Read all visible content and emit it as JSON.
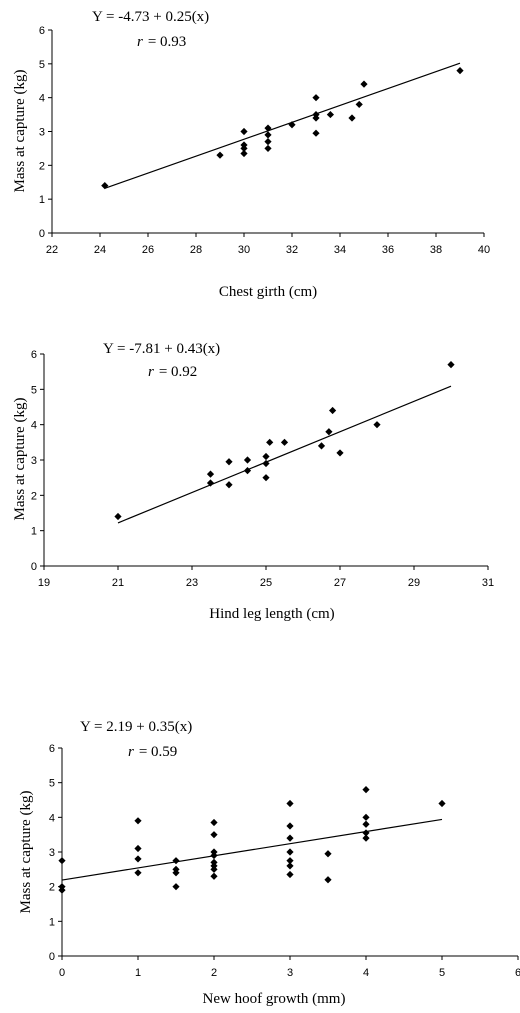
{
  "chart_data": [
    {
      "type": "scatter",
      "title": "",
      "equation": "Y = -4.73 + 0.25(x)",
      "r_symbol": "r",
      "r_value": "= 0.93",
      "xlabel": "Chest girth (cm)",
      "ylabel": "Mass at capture (kg)",
      "xlim": [
        22,
        40
      ],
      "ylim": [
        0,
        6
      ],
      "xticks": [
        22,
        24,
        26,
        28,
        30,
        32,
        34,
        36,
        38,
        40
      ],
      "yticks": [
        0,
        1,
        2,
        3,
        4,
        5,
        6
      ],
      "points": [
        [
          24.2,
          1.4
        ],
        [
          29,
          2.3
        ],
        [
          30,
          3.0
        ],
        [
          30,
          2.6
        ],
        [
          30,
          2.5
        ],
        [
          30,
          2.35
        ],
        [
          31,
          3.1
        ],
        [
          31,
          2.9
        ],
        [
          31,
          2.7
        ],
        [
          31,
          2.5
        ],
        [
          32,
          3.2
        ],
        [
          33,
          4.0
        ],
        [
          33,
          3.5
        ],
        [
          33,
          3.4
        ],
        [
          33,
          2.95
        ],
        [
          33.6,
          3.5
        ],
        [
          34.5,
          3.4
        ],
        [
          34.8,
          3.8
        ],
        [
          35,
          4.4
        ],
        [
          39,
          4.8
        ]
      ],
      "fit": {
        "intercept": -4.73,
        "slope": 0.25,
        "x_range": [
          24.2,
          39
        ]
      },
      "grid": false,
      "legend": "none"
    },
    {
      "type": "scatter",
      "title": "",
      "equation": "Y = -7.81 + 0.43(x)",
      "r_symbol": "r",
      "r_value": "= 0.92",
      "xlabel": "Hind leg length (cm)",
      "ylabel": "Mass at capture (kg)",
      "xlim": [
        19,
        31
      ],
      "ylim": [
        0,
        6
      ],
      "xticks": [
        19,
        21,
        23,
        25,
        27,
        29,
        31
      ],
      "yticks": [
        0,
        1,
        2,
        3,
        4,
        5,
        6
      ],
      "points": [
        [
          21,
          1.4
        ],
        [
          23.5,
          2.6
        ],
        [
          23.5,
          2.35
        ],
        [
          24,
          2.95
        ],
        [
          24,
          2.3
        ],
        [
          24.5,
          3.0
        ],
        [
          24.5,
          2.7
        ],
        [
          25,
          3.1
        ],
        [
          25,
          2.9
        ],
        [
          25,
          2.5
        ],
        [
          25.1,
          3.5
        ],
        [
          25.5,
          3.5
        ],
        [
          26.5,
          3.4
        ],
        [
          26.7,
          3.8
        ],
        [
          26.8,
          4.4
        ],
        [
          27,
          3.2
        ],
        [
          28,
          4.0
        ],
        [
          30,
          5.7
        ]
      ],
      "fit": {
        "intercept": -7.81,
        "slope": 0.43,
        "x_range": [
          21,
          30
        ]
      },
      "grid": false,
      "legend": "none"
    },
    {
      "type": "scatter",
      "title": "",
      "equation": "Y = 2.19 + 0.35(x)",
      "r_symbol": "r",
      "r_value": "= 0.59",
      "xlabel": "New hoof growth (mm)",
      "ylabel": "Mass at capture (kg)",
      "xlim": [
        0,
        6
      ],
      "ylim": [
        0,
        6
      ],
      "xticks": [
        0,
        1,
        2,
        3,
        4,
        5,
        6
      ],
      "yticks": [
        0,
        1,
        2,
        3,
        4,
        5,
        6
      ],
      "points": [
        [
          0,
          2.75
        ],
        [
          0,
          2.0
        ],
        [
          0,
          1.9
        ],
        [
          1,
          3.9
        ],
        [
          1,
          3.1
        ],
        [
          1,
          2.8
        ],
        [
          1,
          2.4
        ],
        [
          1.5,
          2.75
        ],
        [
          1.5,
          2.5
        ],
        [
          1.5,
          2.4
        ],
        [
          1.5,
          2.0
        ],
        [
          2,
          3.85
        ],
        [
          2,
          3.5
        ],
        [
          2,
          3.0
        ],
        [
          2,
          2.9
        ],
        [
          2,
          2.7
        ],
        [
          2,
          2.6
        ],
        [
          2,
          2.5
        ],
        [
          2,
          2.3
        ],
        [
          3,
          4.4
        ],
        [
          3,
          3.75
        ],
        [
          3,
          3.4
        ],
        [
          3,
          3.0
        ],
        [
          3,
          2.75
        ],
        [
          3,
          2.6
        ],
        [
          3,
          2.35
        ],
        [
          3.5,
          2.95
        ],
        [
          3.5,
          2.2
        ],
        [
          4,
          4.8
        ],
        [
          4,
          4.0
        ],
        [
          4,
          3.8
        ],
        [
          4,
          3.55
        ],
        [
          4,
          3.4
        ],
        [
          5,
          4.4
        ]
      ],
      "fit": {
        "intercept": 2.19,
        "slope": 0.35,
        "x_range": [
          0,
          5
        ]
      },
      "grid": false,
      "legend": "none"
    }
  ]
}
